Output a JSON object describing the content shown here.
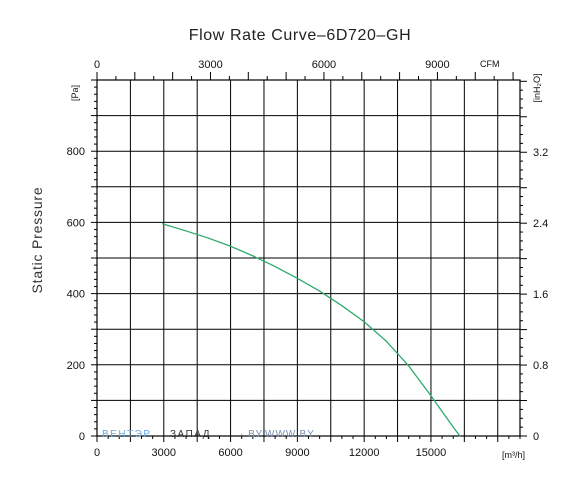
{
  "chart_data": {
    "type": "line",
    "title": "Flow Rate Curve–6D720–GH",
    "ylabel": "Static Pressure",
    "x_unit": "[m³/h]",
    "y_unit": "[Pa]",
    "secondary_x_unit": "CFM",
    "secondary_y_unit": "[inH₂O]",
    "xlim": [
      0,
      19000
    ],
    "ylim": [
      0,
      1000
    ],
    "x_ticks": [
      0,
      3000,
      6000,
      9000,
      12000,
      15000
    ],
    "y_ticks": [
      0,
      200,
      400,
      600,
      800
    ],
    "cfm_ticks": [
      {
        "value": 0,
        "label": "0"
      },
      {
        "value": 3000,
        "label": "3000"
      },
      {
        "value": 6000,
        "label": "6000"
      },
      {
        "value": 9000,
        "label": "9000"
      }
    ],
    "inh2o_ticks": [
      {
        "value": 0,
        "label": "0"
      },
      {
        "value": 0.8,
        "label": "0.8"
      },
      {
        "value": 1.6,
        "label": "1.6"
      },
      {
        "value": 2.4,
        "label": "2.4"
      },
      {
        "value": 3.2,
        "label": "3.2"
      }
    ],
    "grid": true,
    "series": [
      {
        "color": "#2eaa6a",
        "points": [
          {
            "x": 2950,
            "y": 596
          },
          {
            "x": 4000,
            "y": 576
          },
          {
            "x": 5000,
            "y": 556
          },
          {
            "x": 6000,
            "y": 533
          },
          {
            "x": 7000,
            "y": 506
          },
          {
            "x": 8000,
            "y": 476
          },
          {
            "x": 9000,
            "y": 443
          },
          {
            "x": 10000,
            "y": 407
          },
          {
            "x": 11000,
            "y": 366
          },
          {
            "x": 12000,
            "y": 321
          },
          {
            "x": 13000,
            "y": 266
          },
          {
            "x": 14000,
            "y": 197
          },
          {
            "x": 15000,
            "y": 113
          },
          {
            "x": 16000,
            "y": 25
          },
          {
            "x": 16300,
            "y": 0
          }
        ]
      }
    ]
  },
  "watermark": {
    "part1": "ВЕНТЭР",
    "part2": "ЗАПАД",
    "part3": "· ВУ ·",
    "part4": "WWW.BY"
  }
}
